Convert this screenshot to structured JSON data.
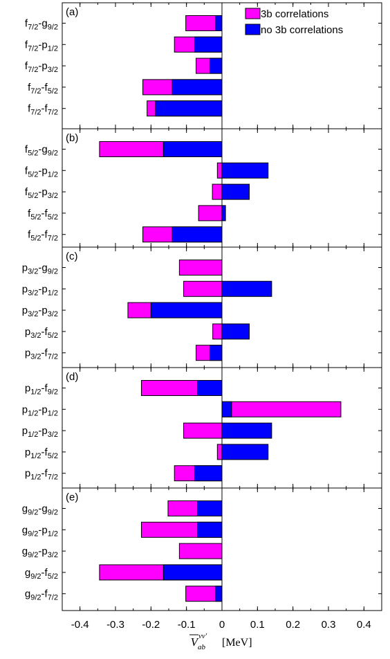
{
  "chart_data": {
    "type": "bar",
    "orientation": "horizontal",
    "xlim": [
      -0.45,
      0.45
    ],
    "xticks": [
      -0.4,
      -0.3,
      -0.2,
      -0.1,
      0,
      0.1,
      0.2,
      0.3,
      0.4
    ],
    "xtick_labels": [
      "-0.4",
      "-0.3",
      "-0.2",
      "-0.1",
      "0",
      "0.1",
      "0.2",
      "0.3",
      "0.4"
    ],
    "xlabel": "V̄_ab^{νν′} [MeV]",
    "xlabel_parts": {
      "base": "V",
      "sub": "ab",
      "sup": "νν′",
      "unit": "[MeV]"
    },
    "legend": {
      "placement": "top-right",
      "entries": [
        {
          "name": "3b correlations",
          "color": "#ff00ff"
        },
        {
          "name": "no 3b correlations",
          "color": "#0000ff"
        }
      ]
    },
    "series_colors": {
      "with_3b": "#ff00ff",
      "no_3b": "#0000ff"
    },
    "panels": [
      {
        "label": "(a)",
        "rows": [
          {
            "a": "f",
            "ai": "7/2",
            "b": "g",
            "bi": "9/2",
            "with_3b": -0.102,
            "no_3b": -0.018
          },
          {
            "a": "f",
            "ai": "7/2",
            "b": "p",
            "bi": "1/2",
            "with_3b": -0.134,
            "no_3b": -0.077
          },
          {
            "a": "f",
            "ai": "7/2",
            "b": "p",
            "bi": "3/2",
            "with_3b": -0.073,
            "no_3b": -0.034
          },
          {
            "a": "f",
            "ai": "7/2",
            "b": "f",
            "bi": "5/2",
            "with_3b": -0.223,
            "no_3b": -0.14
          },
          {
            "a": "f",
            "ai": "7/2",
            "b": "f",
            "bi": "7/2",
            "with_3b": -0.211,
            "no_3b": -0.187
          }
        ]
      },
      {
        "label": "(b)",
        "rows": [
          {
            "a": "f",
            "ai": "5/2",
            "b": "g",
            "bi": "9/2",
            "with_3b": -0.345,
            "no_3b": -0.165
          },
          {
            "a": "f",
            "ai": "5/2",
            "b": "p",
            "bi": "1/2",
            "with_3b": -0.013,
            "no_3b": 0.13
          },
          {
            "a": "f",
            "ai": "5/2",
            "b": "p",
            "bi": "3/2",
            "with_3b": -0.027,
            "no_3b": 0.077
          },
          {
            "a": "f",
            "ai": "5/2",
            "b": "f",
            "bi": "5/2",
            "with_3b": -0.066,
            "no_3b": 0.01
          },
          {
            "a": "f",
            "ai": "5/2",
            "b": "f",
            "bi": "7/2",
            "with_3b": -0.223,
            "no_3b": -0.14
          }
        ]
      },
      {
        "label": "(c)",
        "rows": [
          {
            "a": "p",
            "ai": "3/2",
            "b": "g",
            "bi": "9/2",
            "with_3b": -0.12,
            "no_3b": null
          },
          {
            "a": "p",
            "ai": "3/2",
            "b": "p",
            "bi": "1/2",
            "with_3b": -0.108,
            "no_3b": 0.14
          },
          {
            "a": "p",
            "ai": "3/2",
            "b": "p",
            "bi": "3/2",
            "with_3b": -0.265,
            "no_3b": -0.2
          },
          {
            "a": "p",
            "ai": "3/2",
            "b": "f",
            "bi": "5/2",
            "with_3b": -0.026,
            "no_3b": 0.077
          },
          {
            "a": "p",
            "ai": "3/2",
            "b": "f",
            "bi": "7/2",
            "with_3b": -0.073,
            "no_3b": -0.034
          }
        ]
      },
      {
        "label": "(d)",
        "rows": [
          {
            "a": "p",
            "ai": "1/2",
            "b": "f",
            "bi": "9/2",
            "with_3b": -0.227,
            "no_3b": -0.069
          },
          {
            "a": "p",
            "ai": "1/2",
            "b": "p",
            "bi": "1/2",
            "with_3b": 0.335,
            "no_3b": 0.027
          },
          {
            "a": "p",
            "ai": "1/2",
            "b": "p",
            "bi": "3/2",
            "with_3b": -0.108,
            "no_3b": 0.14
          },
          {
            "a": "p",
            "ai": "1/2",
            "b": "f",
            "bi": "5/2",
            "with_3b": -0.013,
            "no_3b": 0.13
          },
          {
            "a": "p",
            "ai": "1/2",
            "b": "f",
            "bi": "7/2",
            "with_3b": -0.134,
            "no_3b": -0.077
          }
        ]
      },
      {
        "label": "(e)",
        "rows": [
          {
            "a": "g",
            "ai": "9/2",
            "b": "g",
            "bi": "9/2",
            "with_3b": -0.152,
            "no_3b": -0.069
          },
          {
            "a": "g",
            "ai": "9/2",
            "b": "p",
            "bi": "1/2",
            "with_3b": -0.227,
            "no_3b": -0.069
          },
          {
            "a": "g",
            "ai": "9/2",
            "b": "p",
            "bi": "3/2",
            "with_3b": -0.12,
            "no_3b": null
          },
          {
            "a": "g",
            "ai": "9/2",
            "b": "f",
            "bi": "5/2",
            "with_3b": -0.345,
            "no_3b": -0.165
          },
          {
            "a": "g",
            "ai": "9/2",
            "b": "f",
            "bi": "7/2",
            "with_3b": -0.102,
            "no_3b": -0.018
          }
        ]
      }
    ]
  }
}
